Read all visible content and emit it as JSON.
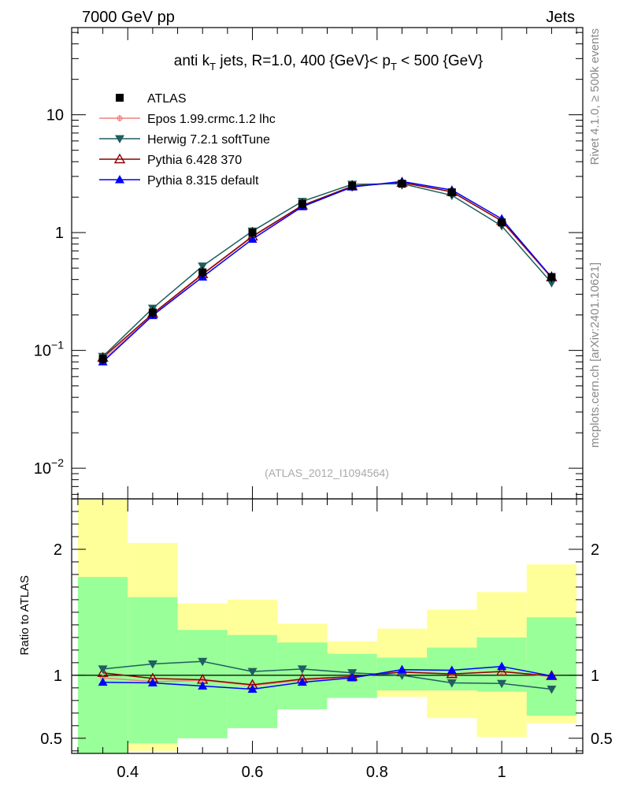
{
  "header": {
    "left": "7000 GeV pp",
    "right": "Jets"
  },
  "side_text": {
    "rivet": "Rivet 4.1.0, ≥ 500k events",
    "mcplots": "mcplots.cern.ch [arXiv:2401.10621]"
  },
  "colors": {
    "ATLAS": "#000000",
    "Epos": "#f08080",
    "Herwig": "#1f5f5f",
    "Pythia6": "#8b0000",
    "Pythia8": "#0000ff",
    "band_inner": "#99ff99",
    "band_outer": "#ffff99"
  },
  "chart_data": [
    {
      "type": "line",
      "panel": "main",
      "yscale": "log",
      "title": "anti k_T jets, R=1.0,  400 {GeV}< p_T < 500 {GeV}",
      "title_parts": {
        "pre": "anti k",
        "sub1": "T",
        "mid": " jets, R=1.0,  400 {GeV}< p",
        "sub2": "T",
        "post": " < 500 {GeV}"
      },
      "watermark": "(ATLAS_2012_I1094564)",
      "xlim": [
        0.31,
        1.13
      ],
      "ylim": [
        0.0055,
        55
      ],
      "y_ticks": [
        {
          "value": 0.01,
          "base": "10",
          "exp": "−2"
        },
        {
          "value": 0.1,
          "base": "10",
          "exp": "−1"
        },
        {
          "value": 1,
          "label": "1"
        },
        {
          "value": 10,
          "label": "10"
        }
      ],
      "x": [
        0.36,
        0.44,
        0.52,
        0.6,
        0.68,
        0.76,
        0.84,
        0.92,
        1.0,
        1.08
      ],
      "series": [
        {
          "name": "ATLAS",
          "key": "ATLAS",
          "marker": "square",
          "values": [
            0.085,
            0.21,
            0.46,
            1.0,
            1.75,
            2.5,
            2.6,
            2.2,
            1.22,
            0.42
          ]
        },
        {
          "name": "Epos 1.99.crmc.1.2 lhc",
          "key": "Epos",
          "marker": "cross",
          "values": [
            0.083,
            0.2,
            0.44,
            0.92,
            1.68,
            2.46,
            2.68,
            2.22,
            1.25,
            0.41
          ]
        },
        {
          "name": "Herwig 7.2.1 softTune",
          "key": "Herwig",
          "marker": "triangle-down",
          "values": [
            0.089,
            0.228,
            0.52,
            1.03,
            1.84,
            2.57,
            2.6,
            2.07,
            1.14,
            0.375
          ]
        },
        {
          "name": "Pythia 6.428 370",
          "key": "Pythia6",
          "marker": "triangle-open",
          "values": [
            0.087,
            0.205,
            0.445,
            0.93,
            1.7,
            2.48,
            2.66,
            2.22,
            1.26,
            0.418
          ]
        },
        {
          "name": "Pythia 8.315 default",
          "key": "Pythia8",
          "marker": "triangle-up",
          "values": [
            0.08,
            0.198,
            0.42,
            0.88,
            1.66,
            2.44,
            2.72,
            2.3,
            1.31,
            0.418
          ]
        }
      ]
    },
    {
      "type": "line",
      "panel": "ratio",
      "ylabel": "Ratio to ATLAS",
      "xlim": [
        0.31,
        1.13
      ],
      "ylim": [
        0.38,
        2.4
      ],
      "y_ticks": [
        0.5,
        1,
        2
      ],
      "x_ticks": [
        0.4,
        0.6,
        0.8,
        1.0
      ],
      "x_tick_labels": [
        "0.4",
        "0.6",
        "0.8",
        "1"
      ],
      "bin_edges": [
        0.32,
        0.4,
        0.48,
        0.56,
        0.64,
        0.72,
        0.8,
        0.88,
        0.96,
        1.04,
        1.12
      ],
      "band_inner": [
        [
          0.36,
          1.78
        ],
        [
          0.46,
          1.62
        ],
        [
          0.5,
          1.36
        ],
        [
          0.58,
          1.32
        ],
        [
          0.73,
          1.26
        ],
        [
          0.82,
          1.17
        ],
        [
          0.88,
          1.14
        ],
        [
          0.88,
          1.22
        ],
        [
          0.87,
          1.3
        ],
        [
          0.68,
          1.46
        ]
      ],
      "band_outer": [
        [
          0.28,
          2.42
        ],
        [
          0.4,
          2.05
        ],
        [
          0.66,
          1.57
        ],
        [
          0.7,
          1.6
        ],
        [
          0.78,
          1.41
        ],
        [
          1.0,
          1.27
        ],
        [
          0.83,
          1.37
        ],
        [
          0.66,
          1.52
        ],
        [
          0.51,
          1.66
        ],
        [
          0.62,
          1.88
        ]
      ],
      "x": [
        0.36,
        0.44,
        0.52,
        0.6,
        0.68,
        0.76,
        0.84,
        0.92,
        1.0,
        1.08
      ],
      "series": [
        {
          "name": "Epos 1.99.crmc.1.2 lhc",
          "key": "Epos",
          "marker": "cross",
          "values": [
            0.98,
            0.95,
            0.96,
            0.92,
            0.96,
            0.985,
            1.03,
            1.01,
            1.03,
            0.99
          ]
        },
        {
          "name": "Herwig 7.2.1 softTune",
          "key": "Herwig",
          "marker": "triangle-down",
          "values": [
            1.05,
            1.09,
            1.11,
            1.03,
            1.05,
            1.02,
            1.0,
            0.94,
            0.935,
            0.89
          ]
        },
        {
          "name": "Pythia 6.428 370",
          "key": "Pythia6",
          "marker": "triangle-open",
          "values": [
            1.02,
            0.975,
            0.965,
            0.925,
            0.97,
            0.99,
            1.025,
            1.01,
            1.03,
            0.995
          ]
        },
        {
          "name": "Pythia 8.315 default",
          "key": "Pythia8",
          "marker": "triangle-up",
          "values": [
            0.945,
            0.94,
            0.915,
            0.89,
            0.945,
            0.98,
            1.045,
            1.04,
            1.07,
            0.995
          ]
        }
      ]
    }
  ]
}
